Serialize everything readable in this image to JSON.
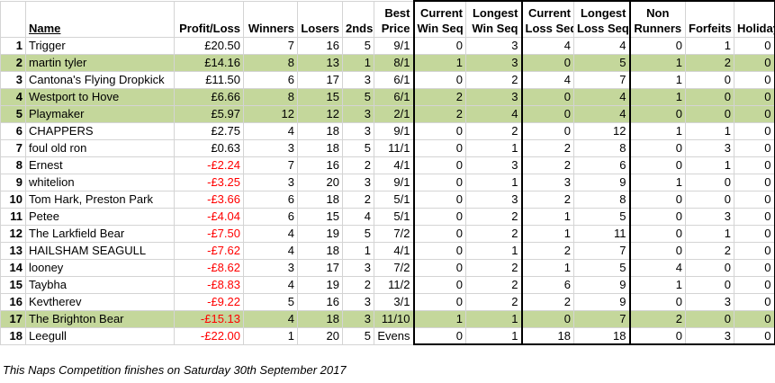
{
  "headers": {
    "rank": "",
    "name": "Name",
    "profit_loss": "Profit/Loss",
    "winners": "Winners",
    "losers": "Losers",
    "seconds": "2nds",
    "best_price": [
      "Best",
      "Price"
    ],
    "current_win_seq": [
      "Current",
      "Win Seq"
    ],
    "longest_win_seq": [
      "Longest",
      "Win Seq"
    ],
    "current_loss_seq": [
      "Current",
      "Loss Seq"
    ],
    "longest_loss_seq": [
      "Longest",
      "Loss Seq"
    ],
    "non_runners": [
      "Non",
      "Runners"
    ],
    "forfeits": "Forfeits",
    "holiday": "Holiday"
  },
  "rows": [
    {
      "rank": "1",
      "name": "Trigger",
      "pl": "£20.50",
      "neg": false,
      "winners": "7",
      "losers": "16",
      "seconds": "5",
      "best": "9/1",
      "cws": "0",
      "lws": "3",
      "cls": "4",
      "lls": "4",
      "nr": "0",
      "forfeits": "1",
      "holiday": "0",
      "highlight": false
    },
    {
      "rank": "2",
      "name": "martin tyler",
      "pl": "£14.16",
      "neg": false,
      "winners": "8",
      "losers": "13",
      "seconds": "1",
      "best": "8/1",
      "cws": "1",
      "lws": "3",
      "cls": "0",
      "lls": "5",
      "nr": "1",
      "forfeits": "2",
      "holiday": "0",
      "highlight": true
    },
    {
      "rank": "3",
      "name": "Cantona's Flying Dropkick",
      "pl": "£11.50",
      "neg": false,
      "winners": "6",
      "losers": "17",
      "seconds": "3",
      "best": "6/1",
      "cws": "0",
      "lws": "2",
      "cls": "4",
      "lls": "7",
      "nr": "1",
      "forfeits": "0",
      "holiday": "0",
      "highlight": false
    },
    {
      "rank": "4",
      "name": "Westport to Hove",
      "pl": "£6.66",
      "neg": false,
      "winners": "8",
      "losers": "15",
      "seconds": "5",
      "best": "6/1",
      "cws": "2",
      "lws": "3",
      "cls": "0",
      "lls": "4",
      "nr": "1",
      "forfeits": "0",
      "holiday": "0",
      "highlight": true
    },
    {
      "rank": "5",
      "name": "Playmaker",
      "pl": "£5.97",
      "neg": false,
      "winners": "12",
      "losers": "12",
      "seconds": "3",
      "best": "2/1",
      "cws": "2",
      "lws": "4",
      "cls": "0",
      "lls": "4",
      "nr": "0",
      "forfeits": "0",
      "holiday": "0",
      "highlight": true
    },
    {
      "rank": "6",
      "name": "CHAPPERS",
      "pl": "£2.75",
      "neg": false,
      "winners": "4",
      "losers": "18",
      "seconds": "3",
      "best": "9/1",
      "cws": "0",
      "lws": "2",
      "cls": "0",
      "lls": "12",
      "nr": "1",
      "forfeits": "1",
      "holiday": "0",
      "highlight": false
    },
    {
      "rank": "7",
      "name": "foul old ron",
      "pl": "£0.63",
      "neg": false,
      "winners": "3",
      "losers": "18",
      "seconds": "5",
      "best": "11/1",
      "cws": "0",
      "lws": "1",
      "cls": "2",
      "lls": "8",
      "nr": "0",
      "forfeits": "3",
      "holiday": "0",
      "highlight": false
    },
    {
      "rank": "8",
      "name": "Ernest",
      "pl": "-£2.24",
      "neg": true,
      "winners": "7",
      "losers": "16",
      "seconds": "2",
      "best": "4/1",
      "cws": "0",
      "lws": "3",
      "cls": "2",
      "lls": "6",
      "nr": "0",
      "forfeits": "1",
      "holiday": "0",
      "highlight": false
    },
    {
      "rank": "9",
      "name": "whitelion",
      "pl": "-£3.25",
      "neg": true,
      "winners": "3",
      "losers": "20",
      "seconds": "3",
      "best": "9/1",
      "cws": "0",
      "lws": "1",
      "cls": "3",
      "lls": "9",
      "nr": "1",
      "forfeits": "0",
      "holiday": "0",
      "highlight": false
    },
    {
      "rank": "10",
      "name": "Tom Hark, Preston Park",
      "pl": "-£3.66",
      "neg": true,
      "winners": "6",
      "losers": "18",
      "seconds": "2",
      "best": "5/1",
      "cws": "0",
      "lws": "3",
      "cls": "2",
      "lls": "8",
      "nr": "0",
      "forfeits": "0",
      "holiday": "0",
      "highlight": false
    },
    {
      "rank": "11",
      "name": "Petee",
      "pl": "-£4.04",
      "neg": true,
      "winners": "6",
      "losers": "15",
      "seconds": "4",
      "best": "5/1",
      "cws": "0",
      "lws": "2",
      "cls": "1",
      "lls": "5",
      "nr": "0",
      "forfeits": "3",
      "holiday": "0",
      "highlight": false
    },
    {
      "rank": "12",
      "name": "The Larkfield Bear",
      "pl": "-£7.50",
      "neg": true,
      "winners": "4",
      "losers": "19",
      "seconds": "5",
      "best": "7/2",
      "cws": "0",
      "lws": "2",
      "cls": "1",
      "lls": "11",
      "nr": "0",
      "forfeits": "1",
      "holiday": "0",
      "highlight": false
    },
    {
      "rank": "13",
      "name": "HAILSHAM SEAGULL",
      "pl": "-£7.62",
      "neg": true,
      "winners": "4",
      "losers": "18",
      "seconds": "1",
      "best": "4/1",
      "cws": "0",
      "lws": "1",
      "cls": "2",
      "lls": "7",
      "nr": "0",
      "forfeits": "2",
      "holiday": "0",
      "highlight": false
    },
    {
      "rank": "14",
      "name": "looney",
      "pl": "-£8.62",
      "neg": true,
      "winners": "3",
      "losers": "17",
      "seconds": "3",
      "best": "7/2",
      "cws": "0",
      "lws": "2",
      "cls": "1",
      "lls": "5",
      "nr": "4",
      "forfeits": "0",
      "holiday": "0",
      "highlight": false
    },
    {
      "rank": "15",
      "name": "Taybha",
      "pl": "-£8.83",
      "neg": true,
      "winners": "4",
      "losers": "19",
      "seconds": "2",
      "best": "11/2",
      "cws": "0",
      "lws": "2",
      "cls": "6",
      "lls": "9",
      "nr": "1",
      "forfeits": "0",
      "holiday": "0",
      "highlight": false
    },
    {
      "rank": "16",
      "name": "Kevtherev",
      "pl": "-£9.22",
      "neg": true,
      "winners": "5",
      "losers": "16",
      "seconds": "3",
      "best": "3/1",
      "cws": "0",
      "lws": "2",
      "cls": "2",
      "lls": "9",
      "nr": "0",
      "forfeits": "3",
      "holiday": "0",
      "highlight": false
    },
    {
      "rank": "17",
      "name": "The Brighton Bear",
      "pl": "-£15.13",
      "neg": true,
      "winners": "4",
      "losers": "18",
      "seconds": "3",
      "best": "11/10",
      "cws": "1",
      "lws": "1",
      "cls": "0",
      "lls": "7",
      "nr": "2",
      "forfeits": "0",
      "holiday": "0",
      "highlight": true
    },
    {
      "rank": "18",
      "name": "Leegull",
      "pl": "-£22.00",
      "neg": true,
      "winners": "1",
      "losers": "20",
      "seconds": "5",
      "best": "Evens",
      "cws": "0",
      "lws": "1",
      "cls": "18",
      "lls": "18",
      "nr": "0",
      "forfeits": "3",
      "holiday": "0",
      "highlight": false
    }
  ],
  "footnote": "This Naps Competition finishes on Saturday 30th September 2017"
}
